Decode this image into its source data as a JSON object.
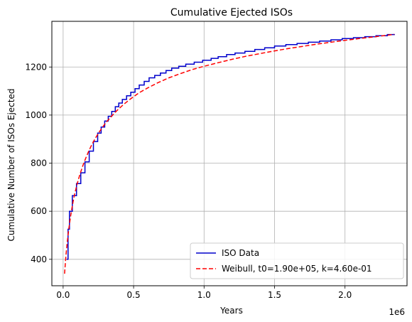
{
  "chart_data": {
    "type": "line",
    "title": "Cumulative Ejected ISOs",
    "xlabel": "Years",
    "ylabel": "Cumulative Number of ISOs Ejected",
    "x_offset_label": "1e6",
    "xlim": [
      -80000,
      2440000
    ],
    "ylim": [
      290,
      1390
    ],
    "x_ticks": [
      0,
      500000,
      1000000,
      1500000,
      2000000
    ],
    "x_tick_labels": [
      "0.0",
      "0.5",
      "1.0",
      "1.5",
      "2.0"
    ],
    "y_ticks": [
      400,
      600,
      800,
      1000,
      1200
    ],
    "y_tick_labels": [
      "400",
      "600",
      "800",
      "1000",
      "1200"
    ],
    "grid": true,
    "legend_position": "lower-right",
    "series": [
      {
        "name": "ISO Data",
        "color": "#0000cc",
        "style": "step",
        "x": [
          25000,
          35000,
          45000,
          65000,
          95000,
          125000,
          155000,
          185000,
          215000,
          245000,
          270000,
          295000,
          320000,
          345000,
          370000,
          395000,
          420000,
          450000,
          480000,
          510000,
          540000,
          575000,
          610000,
          650000,
          690000,
          730000,
          770000,
          820000,
          870000,
          930000,
          990000,
          1050000,
          1100000,
          1160000,
          1220000,
          1290000,
          1360000,
          1430000,
          1500000,
          1580000,
          1660000,
          1740000,
          1820000,
          1900000,
          1980000,
          2060000,
          2140000,
          2220000,
          2300000,
          2350000
        ],
        "y": [
          400,
          525,
          600,
          665,
          715,
          760,
          805,
          850,
          890,
          925,
          950,
          975,
          995,
          1015,
          1035,
          1050,
          1065,
          1080,
          1095,
          1110,
          1125,
          1140,
          1155,
          1165,
          1175,
          1185,
          1195,
          1203,
          1212,
          1220,
          1228,
          1236,
          1243,
          1252,
          1258,
          1265,
          1273,
          1280,
          1287,
          1293,
          1298,
          1303,
          1308,
          1313,
          1318,
          1322,
          1326,
          1330,
          1335,
          1337
        ]
      },
      {
        "name": "Weibull, t0=1.90e+05, k=4.60e-01",
        "color": "#ff0000",
        "style": "dashed",
        "x": [
          10000,
          20000,
          30000,
          40000,
          50000,
          60000,
          70000,
          80000,
          100000,
          120000,
          140000,
          160000,
          180000,
          200000,
          230000,
          260000,
          300000,
          340000,
          380000,
          430000,
          480000,
          540000,
          600000,
          670000,
          750000,
          830000,
          920000,
          1000000,
          1100000,
          1200000,
          1300000,
          1400000,
          1500000,
          1600000,
          1700000,
          1800000,
          1900000,
          2000000,
          2100000,
          2200000,
          2300000,
          2350000
        ],
        "y": [
          340,
          415,
          475,
          525,
          568,
          605,
          638,
          666,
          715,
          755,
          790,
          820,
          848,
          873,
          905,
          933,
          966,
          993,
          1018,
          1045,
          1068,
          1093,
          1113,
          1134,
          1155,
          1172,
          1190,
          1203,
          1218,
          1232,
          1245,
          1256,
          1267,
          1277,
          1286,
          1295,
          1303,
          1311,
          1318,
          1325,
          1332,
          1336
        ]
      }
    ]
  }
}
